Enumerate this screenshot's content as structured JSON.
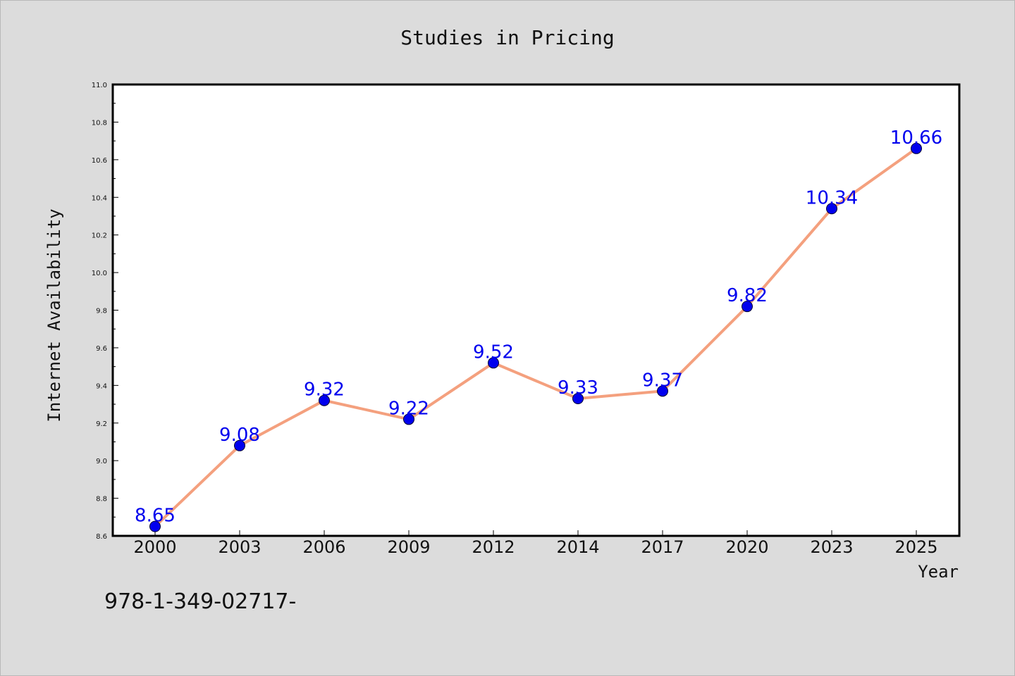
{
  "colors": {
    "background": "#dcdcdc",
    "plot_background": "#ffffff",
    "line": "#f4a07e",
    "marker": "#0000ee",
    "data_label": "#0000ee"
  },
  "footer": {
    "text": "978-1-349-02717-"
  },
  "chart_data": {
    "type": "line",
    "title": "Studies in Pricing",
    "xlabel": "Year",
    "ylabel": "Internet Availability",
    "categories": [
      "2000",
      "2003",
      "2006",
      "2009",
      "2012",
      "2014",
      "2017",
      "2020",
      "2023",
      "2025"
    ],
    "series": [
      {
        "values": [
          8.65,
          9.08,
          9.32,
          9.22,
          9.52,
          9.33,
          9.37,
          9.82,
          10.34,
          10.66
        ],
        "labels": [
          "8.65",
          "9.08",
          "9.32",
          "9.22",
          "9.52",
          "9.33",
          "9.37",
          "9.82",
          "10.34",
          "10.66"
        ]
      }
    ],
    "ylim": [
      8.6,
      11.0
    ],
    "yticks": [
      "8.6",
      "8.8",
      "9.0",
      "9.2",
      "9.4",
      "9.6",
      "9.8",
      "10.0",
      "10.2",
      "10.4",
      "10.6",
      "10.8",
      "11.0"
    ],
    "grid": false,
    "legend": false
  }
}
